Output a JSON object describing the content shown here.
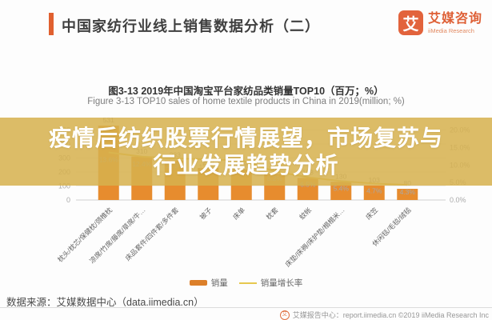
{
  "header": {
    "title": "中国家纺行业线上销售数据分析（二）",
    "logo": {
      "mark": "艾",
      "name": "艾媒咨询",
      "subname": "iiMedia Research"
    }
  },
  "overlay": {
    "line1": "疫情后纺织股票行情展望，市场复苏与",
    "line2": "行业发展趋势分析"
  },
  "chart_data": {
    "type": "bar",
    "title": "图3-13 2019年中国淘宝平台家纺品类销量TOP10（百万；%）",
    "subtitle": "Figure 3-13 TOP10 sales of home textile products in China in 2019(million; %)",
    "categories": [
      "枕头/枕芯/保健枕/颈椎枕",
      "凉席/竹席/藤席/草席/牛…",
      "床品套件/四件套/多件套",
      "被子",
      "床单",
      "枕套",
      "蚊帐",
      "床垫/床褥/床护垫/榻榻米…",
      "床笠",
      "休闲毯/毛毯/绒毯"
    ],
    "series": [
      {
        "name": "销量",
        "kind": "bar",
        "color": "#e78c2e",
        "values": [
          531,
          310,
          283,
          229,
          219,
          186,
          158,
          130,
          103,
          80
        ]
      },
      {
        "name": "销量增长率",
        "kind": "line",
        "color": "#e6c84f",
        "values": [
          13.6,
          12.4,
          11.9,
          11.6,
          11.3,
          8.2,
          6.5,
          5.4,
          4.7,
          4.3
        ]
      }
    ],
    "left_axis": {
      "label": "销量（百万）",
      "ticks": [
        "0",
        "100",
        "200",
        "300",
        "400",
        "500"
      ],
      "max": 500
    },
    "right_axis": {
      "label": "销量增长率（%）",
      "ticks": [
        "0.0%",
        "5.0%",
        "10.0%",
        "15.0%",
        "20.0%"
      ],
      "max": 20
    },
    "legend": [
      "销量",
      "销量增长率"
    ],
    "grid": true,
    "legend_position": "bottom"
  },
  "footer": {
    "source": "数据来源：艾媒数据中心（data.iimedia.cn）",
    "copyright_icon": "艾",
    "copyright": "艾媒报告中心：report.iimedia.cn  ©2019  iiMedia Research Inc"
  }
}
